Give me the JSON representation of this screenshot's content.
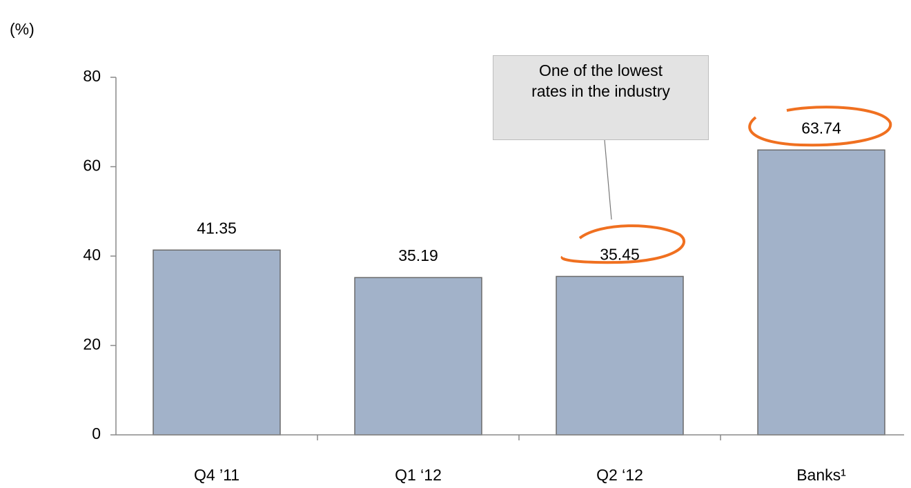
{
  "chart_data": {
    "type": "bar",
    "y_label": "(%)",
    "categories": [
      "Q4 ’11",
      "Q1 ‘12",
      "Q2 ‘12",
      "Banks¹"
    ],
    "values": [
      41.35,
      35.19,
      35.45,
      63.74
    ],
    "color": "#a2b2c9",
    "ylim": [
      0,
      80
    ],
    "yticks": [
      0,
      20,
      40,
      60,
      80
    ],
    "grid": false,
    "annotation": "One of the lowest rates in the industry"
  }
}
